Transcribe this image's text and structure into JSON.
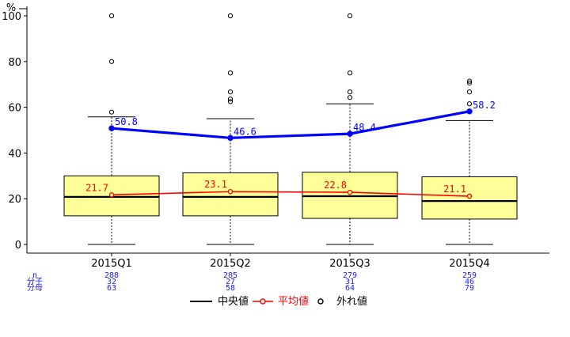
{
  "chart_data": {
    "type": "box",
    "ylabel": "%",
    "ylim": [
      0,
      100
    ],
    "yticks": [
      0,
      20,
      40,
      60,
      80,
      100
    ],
    "categories": [
      "2015Q1",
      "2015Q2",
      "2015Q3",
      "2015Q4"
    ],
    "boxes": [
      {
        "q1": 12.5,
        "median": 20.8,
        "q3": 30.0,
        "whisker_low": 0,
        "whisker_high": 55.8,
        "outliers": [
          57.9,
          80.0,
          100.0
        ]
      },
      {
        "q1": 12.5,
        "median": 20.8,
        "q3": 31.3,
        "whisker_low": 0,
        "whisker_high": 55.0,
        "outliers": [
          62.5,
          63.6,
          66.7,
          75.0,
          100.0
        ]
      },
      {
        "q1": 11.4,
        "median": 21.1,
        "q3": 31.6,
        "whisker_low": 0,
        "whisker_high": 61.5,
        "outliers": [
          64.3,
          66.7,
          75.0,
          100.0
        ]
      },
      {
        "q1": 11.1,
        "median": 19.0,
        "q3": 29.6,
        "whisker_low": 0,
        "whisker_high": 54.2,
        "outliers": [
          61.5,
          66.7,
          70.6,
          71.4
        ]
      }
    ],
    "means": [
      21.7,
      23.1,
      22.8,
      21.1
    ],
    "mean_labels": [
      "21.7",
      "23.1",
      "22.8",
      "21.1"
    ],
    "overall": [
      50.8,
      46.6,
      48.4,
      58.2
    ],
    "overall_labels": [
      "50.8",
      "46.6",
      "48.4",
      "58.2"
    ],
    "table": {
      "row_labels": [
        "n",
        "分子",
        "分母"
      ],
      "columns": [
        [
          "288",
          "32",
          "63"
        ],
        [
          "285",
          "27",
          "58"
        ],
        [
          "279",
          "31",
          "64"
        ],
        [
          "259",
          "46",
          "79"
        ]
      ]
    },
    "legend": [
      {
        "label": "中央値",
        "color": "#000000",
        "kind": "line"
      },
      {
        "label": "平均値",
        "color": "#ff0000",
        "kind": "line-point"
      },
      {
        "label": "外れ値",
        "color": "#000000",
        "kind": "point"
      }
    ],
    "colors": {
      "box_fill": "#ffff99",
      "median": "#000000",
      "mean": "#ff0000",
      "trend": "#0000ff",
      "table_text": "#1a1aff"
    }
  }
}
